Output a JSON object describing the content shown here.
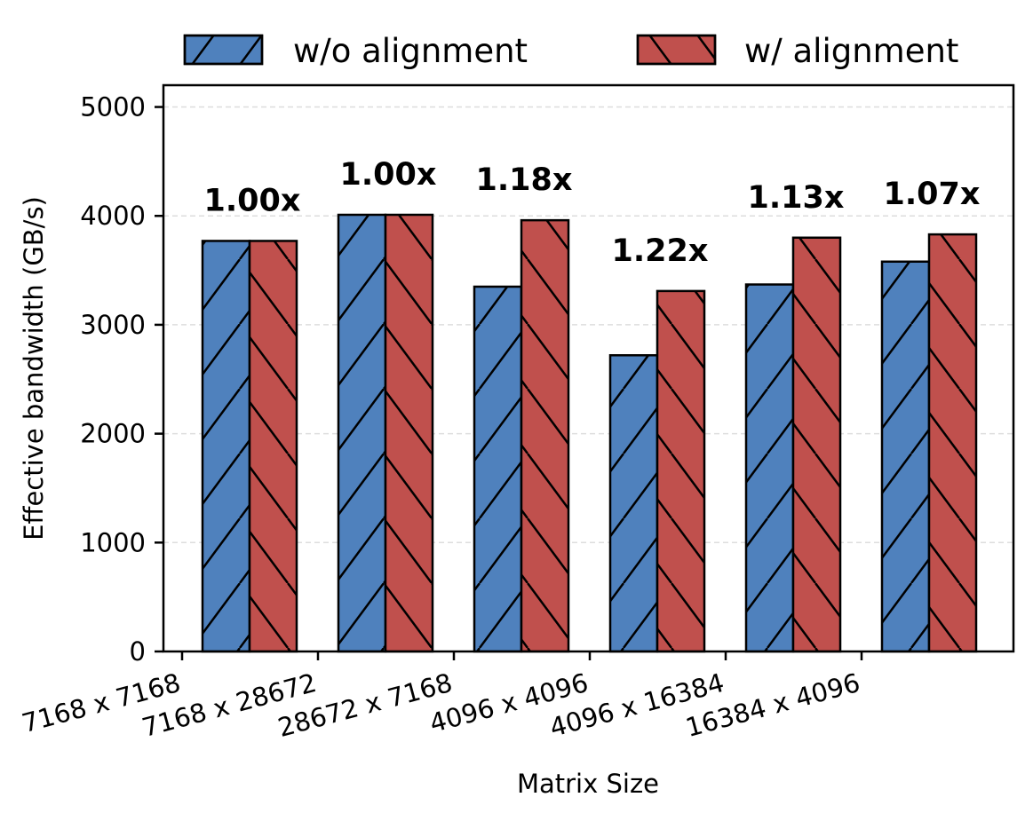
{
  "chart_data": {
    "type": "bar",
    "xlabel": "Matrix Size",
    "ylabel": "Effective bandwidth (GB/s)",
    "ylim": [
      0,
      5200
    ],
    "yticks": [
      0,
      1000,
      2000,
      3000,
      4000,
      5000
    ],
    "grid": "y-dashed",
    "legend_position": "top",
    "categories": [
      "7168 x 7168",
      "7168 x 28672",
      "28672 x 7168",
      "4096 x 4096",
      "4096 x 16384",
      "16384 x 4096"
    ],
    "series": [
      {
        "name": "w/o alignment",
        "color": "#4f81bd",
        "hatch": "forward-diagonal",
        "values": [
          3770,
          4010,
          3350,
          2720,
          3370,
          3580
        ]
      },
      {
        "name": "w/ alignment",
        "color": "#c0504d",
        "hatch": "back-diagonal",
        "values": [
          3770,
          4010,
          3960,
          3310,
          3800,
          3830
        ]
      }
    ],
    "annotations": [
      "1.00x",
      "1.00x",
      "1.18x",
      "1.22x",
      "1.13x",
      "1.07x"
    ]
  }
}
